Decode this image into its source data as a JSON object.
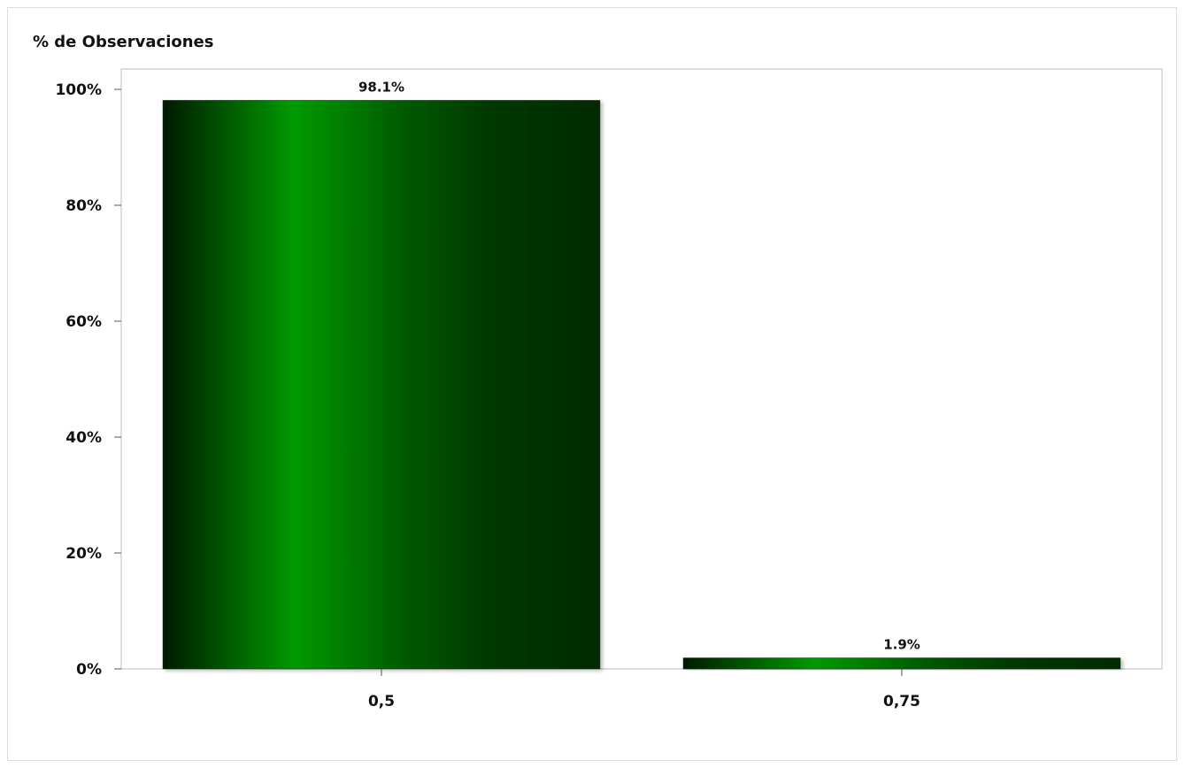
{
  "chart_data": {
    "type": "bar",
    "ylabel": "% de Observaciones",
    "xlabel": "",
    "categories": [
      "0,5",
      "0,75"
    ],
    "values": [
      98.1,
      1.9
    ],
    "data_labels": [
      "98.1%",
      "1.9%"
    ],
    "ylim": [
      0,
      100
    ],
    "yticks": [
      0,
      20,
      40,
      60,
      80,
      100
    ],
    "ytick_labels": [
      "0%",
      "20%",
      "40%",
      "60%",
      "80%",
      "100%"
    ],
    "grid": false,
    "legend": "none",
    "colors": {
      "bar_dark": "#003300",
      "bar_light": "#009a00",
      "frame": "#b9bcc2"
    }
  }
}
